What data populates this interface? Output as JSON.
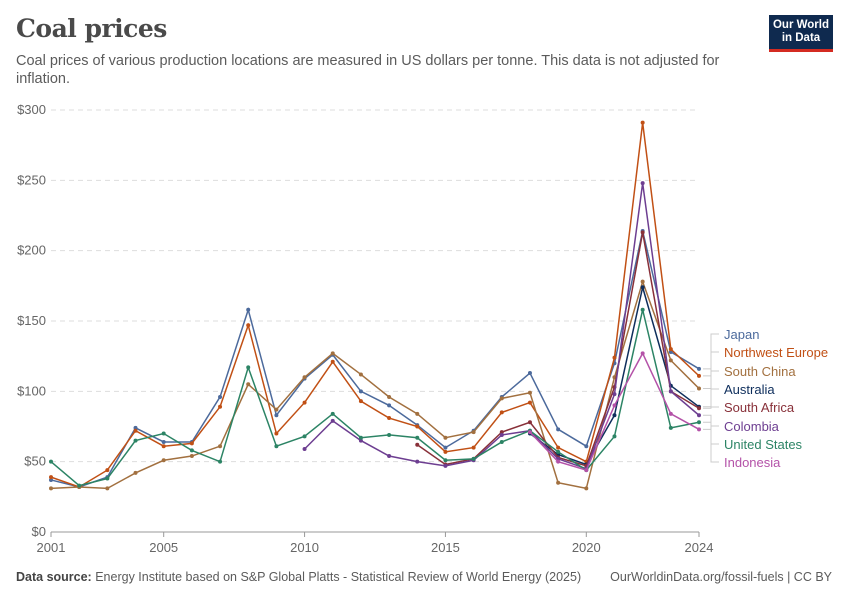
{
  "title": "Coal prices",
  "subtitle": "Coal prices of various production locations are measured in US dollars per tonne. This data is not adjusted for inflation.",
  "logo": "Our World in Data",
  "footer": {
    "source_label": "Data source:",
    "source": "Energy Institute based on S&P Global Platts - Statistical Review of World Energy (2025)",
    "url": "OurWorldinData.org/fossil-fuels | CC BY"
  },
  "chart_data": {
    "type": "line",
    "title": "Coal prices",
    "xlim": [
      2001,
      2024
    ],
    "ylim": [
      0,
      300
    ],
    "x_ticks": [
      2001,
      2005,
      2010,
      2015,
      2020,
      2024
    ],
    "y_ticks": [
      0,
      50,
      100,
      150,
      200,
      250,
      300
    ],
    "y_tick_labels": [
      "$0",
      "$50",
      "$100",
      "$150",
      "$200",
      "$250",
      "$300"
    ],
    "grid": "horizontal dashed",
    "legend": "right",
    "x": [
      2001,
      2002,
      2003,
      2004,
      2005,
      2006,
      2007,
      2008,
      2009,
      2010,
      2011,
      2012,
      2013,
      2014,
      2015,
      2016,
      2017,
      2018,
      2019,
      2020,
      2021,
      2022,
      2023,
      2024
    ],
    "series": [
      {
        "name": "Japan",
        "color": "#4c6a9c",
        "values": [
          37,
          32,
          39,
          74,
          64,
          64,
          96,
          158,
          83,
          109,
          126,
          100,
          90,
          76,
          60,
          72,
          96,
          113,
          73,
          61,
          120,
          214,
          128,
          116
        ]
      },
      {
        "name": "Northwest Europe",
        "color": "#c15015",
        "values": [
          39,
          32,
          44,
          72,
          61,
          63,
          89,
          147,
          70,
          92,
          121,
          93,
          81,
          75,
          57,
          60,
          85,
          92,
          60,
          50,
          124,
          291,
          130,
          111
        ]
      },
      {
        "name": "South China",
        "color": "#a2703f",
        "values": [
          31,
          32,
          31,
          42,
          51,
          54,
          61,
          105,
          87,
          110,
          127,
          112,
          96,
          84,
          67,
          71,
          95,
          99,
          35,
          31,
          110,
          178,
          122,
          102
        ]
      },
      {
        "name": "Australia",
        "color": "#0e2e5c",
        "values": [
          null,
          null,
          null,
          null,
          null,
          null,
          null,
          null,
          null,
          null,
          null,
          null,
          null,
          null,
          null,
          null,
          null,
          70,
          55,
          48,
          83,
          174,
          104,
          89
        ]
      },
      {
        "name": "South Africa",
        "color": "#883039",
        "values": [
          null,
          null,
          null,
          null,
          null,
          null,
          null,
          null,
          null,
          null,
          null,
          null,
          null,
          62,
          48,
          52,
          71,
          78,
          53,
          47,
          103,
          213,
          100,
          88
        ]
      },
      {
        "name": "Colombia",
        "color": "#6d3e91",
        "values": [
          null,
          null,
          null,
          null,
          null,
          null,
          null,
          null,
          null,
          59,
          79,
          65,
          54,
          50,
          47,
          51,
          69,
          72,
          52,
          45,
          98,
          248,
          100,
          83
        ]
      },
      {
        "name": "United States",
        "color": "#2c8465",
        "values": [
          50,
          33,
          38,
          65,
          70,
          58,
          50,
          117,
          61,
          68,
          84,
          67,
          69,
          67,
          51,
          52,
          64,
          72,
          57,
          44,
          68,
          158,
          74,
          78
        ]
      },
      {
        "name": "Indonesia",
        "color": "#b452a8",
        "values": [
          null,
          null,
          null,
          null,
          null,
          null,
          null,
          null,
          null,
          null,
          null,
          null,
          null,
          null,
          null,
          null,
          null,
          71,
          50,
          44,
          90,
          127,
          84,
          73
        ]
      }
    ]
  }
}
